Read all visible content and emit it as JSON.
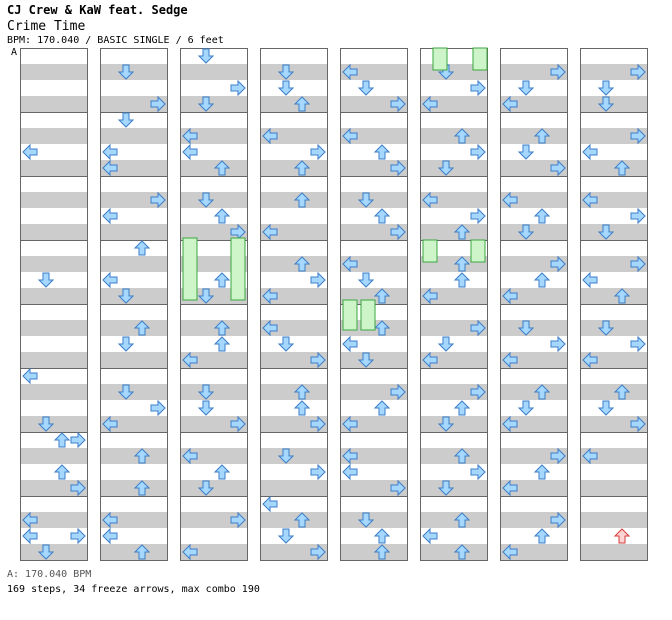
{
  "header": {
    "artist": "CJ Crew & KaW feat. Sedge",
    "title": "Crime Time",
    "info": "BPM: 170.040 / BASIC SINGLE / 6 feet",
    "bpm_marker": "A"
  },
  "footer": {
    "bpm_line": "A: 170.040 BPM",
    "stats": "169 steps, 34 freeze arrows, max combo 190"
  },
  "colors": {
    "stripe": "#cccccc",
    "arrow_fill": "#a6d8ff",
    "arrow_stroke": "#3a7ec8",
    "freeze_fill": "#cdf5c9",
    "freeze_stroke": "#3aa840",
    "shock_fill": "#ffd4d4",
    "shock_stroke": "#d43a3a"
  },
  "chart_data": {
    "type": "table",
    "lanes": [
      "left",
      "down",
      "up",
      "right"
    ],
    "columns": 8,
    "rows_per_column": 32,
    "notes": [
      [
        1,
        6,
        "left"
      ],
      [
        2,
        14,
        "down"
      ],
      [
        3,
        24,
        "right"
      ],
      [
        4,
        23,
        "down"
      ],
      [
        5,
        20,
        "left"
      ],
      [
        6,
        24,
        "up"
      ],
      [
        7,
        26,
        "up"
      ],
      [
        8,
        27,
        "right"
      ],
      [
        9,
        30,
        "left"
      ],
      [
        10,
        31,
        "down"
      ],
      [
        11,
        29,
        "left"
      ],
      [
        12,
        30,
        "right"
      ],
      [
        13,
        33,
        "down"
      ],
      [
        14,
        35,
        "right"
      ],
      [
        15,
        36,
        "down"
      ],
      [
        16,
        38,
        "left"
      ],
      [
        17,
        39,
        "left"
      ],
      [
        18,
        41,
        "right"
      ],
      [
        19,
        42,
        "left"
      ],
      [
        20,
        44,
        "up"
      ],
      [
        21,
        46,
        "left"
      ],
      [
        22,
        47,
        "down"
      ],
      [
        23,
        49,
        "up"
      ],
      [
        24,
        50,
        "down"
      ],
      [
        25,
        53,
        "down"
      ],
      [
        26,
        54,
        "right"
      ],
      [
        27,
        55,
        "left"
      ],
      [
        28,
        57,
        "up"
      ],
      [
        29,
        59,
        "up"
      ],
      [
        30,
        61,
        "left"
      ],
      [
        31,
        62,
        "left"
      ],
      [
        32,
        63,
        "up"
      ],
      [
        33,
        64,
        "down"
      ],
      [
        34,
        66,
        "right"
      ],
      [
        35,
        67,
        "down"
      ],
      [
        36,
        69,
        "left"
      ],
      [
        37,
        70,
        "left"
      ],
      [
        38,
        71,
        "up"
      ],
      [
        39,
        73,
        "down"
      ],
      [
        40,
        74,
        "up"
      ],
      [
        41,
        75,
        "right"
      ],
      [
        42,
        77,
        "right"
      ],
      [
        43,
        78,
        "up"
      ],
      [
        44,
        79,
        "down"
      ],
      [
        45,
        81,
        "up"
      ],
      [
        46,
        82,
        "up"
      ],
      [
        47,
        83,
        "left"
      ],
      [
        48,
        85,
        "down"
      ],
      [
        49,
        86,
        "down"
      ],
      [
        50,
        87,
        "right"
      ],
      [
        51,
        89,
        "left"
      ],
      [
        52,
        90,
        "up"
      ],
      [
        53,
        91,
        "down"
      ],
      [
        54,
        93,
        "right"
      ],
      [
        55,
        95,
        "left"
      ],
      [
        56,
        97,
        "down"
      ],
      [
        57,
        98,
        "down"
      ],
      [
        58,
        99,
        "up"
      ],
      [
        59,
        101,
        "left"
      ],
      [
        60,
        102,
        "right"
      ],
      [
        61,
        103,
        "up"
      ],
      [
        62,
        105,
        "up"
      ],
      [
        63,
        107,
        "left"
      ],
      [
        64,
        109,
        "up"
      ],
      [
        65,
        110,
        "right"
      ],
      [
        66,
        111,
        "left"
      ],
      [
        67,
        113,
        "left"
      ],
      [
        68,
        114,
        "down"
      ],
      [
        69,
        115,
        "right"
      ],
      [
        70,
        117,
        "up"
      ],
      [
        71,
        118,
        "up"
      ],
      [
        72,
        119,
        "right"
      ],
      [
        73,
        121,
        "down"
      ],
      [
        74,
        122,
        "right"
      ],
      [
        75,
        124,
        "left"
      ],
      [
        76,
        125,
        "up"
      ],
      [
        77,
        126,
        "down"
      ],
      [
        78,
        127,
        "right"
      ],
      [
        79,
        129,
        "left"
      ],
      [
        80,
        130,
        "down"
      ],
      [
        81,
        131,
        "right"
      ],
      [
        82,
        133,
        "left"
      ],
      [
        83,
        134,
        "up"
      ],
      [
        84,
        135,
        "right"
      ],
      [
        85,
        137,
        "down"
      ],
      [
        86,
        138,
        "up"
      ],
      [
        87,
        139,
        "right"
      ],
      [
        88,
        141,
        "left"
      ],
      [
        89,
        142,
        "down"
      ],
      [
        90,
        143,
        "up"
      ],
      [
        91,
        145,
        "up"
      ],
      [
        92,
        146,
        "left"
      ],
      [
        93,
        147,
        "down"
      ],
      [
        94,
        149,
        "right"
      ],
      [
        95,
        150,
        "up"
      ],
      [
        96,
        151,
        "left"
      ],
      [
        97,
        153,
        "left"
      ],
      [
        98,
        154,
        "left"
      ],
      [
        99,
        155,
        "right"
      ],
      [
        100,
        157,
        "down"
      ],
      [
        101,
        158,
        "up"
      ],
      [
        102,
        159,
        "up"
      ],
      [
        103,
        161,
        "down"
      ],
      [
        104,
        162,
        "right"
      ],
      [
        105,
        163,
        "left"
      ],
      [
        106,
        165,
        "up"
      ],
      [
        107,
        166,
        "right"
      ],
      [
        108,
        167,
        "down"
      ],
      [
        109,
        169,
        "left"
      ],
      [
        110,
        170,
        "right"
      ],
      [
        111,
        171,
        "up"
      ],
      [
        112,
        173,
        "up"
      ],
      [
        113,
        174,
        "up"
      ],
      [
        114,
        175,
        "left"
      ],
      [
        115,
        177,
        "right"
      ],
      [
        116,
        178,
        "down"
      ],
      [
        117,
        179,
        "left"
      ],
      [
        118,
        181,
        "right"
      ],
      [
        119,
        182,
        "up"
      ],
      [
        120,
        183,
        "down"
      ],
      [
        121,
        185,
        "up"
      ],
      [
        122,
        186,
        "right"
      ],
      [
        123,
        187,
        "down"
      ],
      [
        124,
        189,
        "up"
      ],
      [
        125,
        190,
        "left"
      ],
      [
        126,
        191,
        "up"
      ],
      [
        127,
        193,
        "right"
      ],
      [
        128,
        194,
        "down"
      ],
      [
        129,
        195,
        "left"
      ],
      [
        130,
        197,
        "up"
      ],
      [
        131,
        198,
        "down"
      ],
      [
        132,
        199,
        "right"
      ],
      [
        133,
        201,
        "left"
      ],
      [
        134,
        202,
        "up"
      ],
      [
        135,
        203,
        "down"
      ],
      [
        136,
        205,
        "right"
      ],
      [
        137,
        206,
        "up"
      ],
      [
        138,
        207,
        "left"
      ],
      [
        139,
        209,
        "down"
      ],
      [
        140,
        210,
        "right"
      ],
      [
        141,
        211,
        "left"
      ],
      [
        142,
        213,
        "up"
      ],
      [
        143,
        214,
        "down"
      ],
      [
        144,
        215,
        "left"
      ],
      [
        145,
        217,
        "right"
      ],
      [
        146,
        218,
        "up"
      ],
      [
        147,
        219,
        "left"
      ],
      [
        148,
        221,
        "right"
      ],
      [
        149,
        222,
        "up"
      ],
      [
        150,
        223,
        "left"
      ],
      [
        151,
        225,
        "right"
      ],
      [
        152,
        226,
        "down"
      ],
      [
        153,
        227,
        "down"
      ],
      [
        154,
        229,
        "right"
      ],
      [
        155,
        230,
        "left"
      ],
      [
        156,
        231,
        "up"
      ],
      [
        157,
        233,
        "left"
      ],
      [
        158,
        234,
        "right"
      ],
      [
        159,
        235,
        "down"
      ],
      [
        160,
        237,
        "right"
      ],
      [
        161,
        238,
        "left"
      ],
      [
        162,
        239,
        "up"
      ],
      [
        163,
        241,
        "down"
      ],
      [
        164,
        242,
        "right"
      ],
      [
        165,
        243,
        "left"
      ],
      [
        166,
        245,
        "up"
      ],
      [
        167,
        246,
        "down"
      ],
      [
        168,
        247,
        "right"
      ],
      [
        169,
        249,
        "left"
      ]
    ]
  }
}
